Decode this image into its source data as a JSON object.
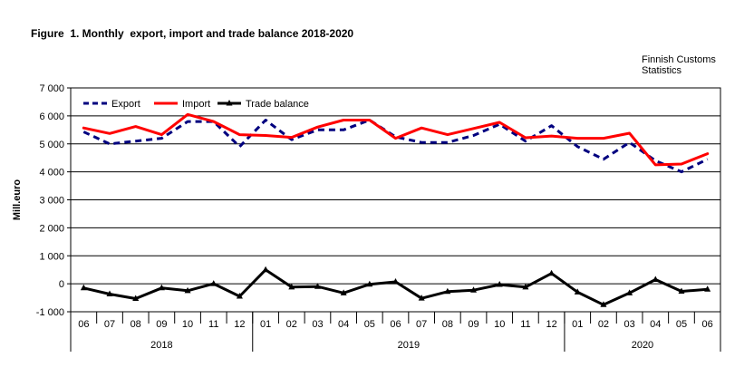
{
  "title": "Figure  1. Monthly  export, import and trade balance 2018-2020",
  "source": [
    "Finnish Customs",
    "Statistics"
  ],
  "chart_data": {
    "type": "line",
    "title": "Figure  1. Monthly  export, import and trade balance 2018-2020",
    "ylabel": "Mill.euro",
    "xlabel": "",
    "ylim": [
      -1000,
      7000
    ],
    "yticks": [
      -1000,
      0,
      1000,
      2000,
      3000,
      4000,
      5000,
      6000,
      7000
    ],
    "ytick_labels": [
      "-1 000",
      "0",
      "1 000",
      "2 000",
      "3 000",
      "4 000",
      "5 000",
      "6 000",
      "7 000"
    ],
    "grid": true,
    "legend_position": "top-left",
    "categories": [
      "06",
      "07",
      "08",
      "09",
      "10",
      "11",
      "12",
      "01",
      "02",
      "03",
      "04",
      "05",
      "06",
      "07",
      "08",
      "09",
      "10",
      "11",
      "12",
      "01",
      "02",
      "03",
      "04",
      "05",
      "06"
    ],
    "years": [
      {
        "label": "2018",
        "start": 0,
        "end": 6
      },
      {
        "label": "2019",
        "start": 7,
        "end": 18
      },
      {
        "label": "2020",
        "start": 19,
        "end": 24
      }
    ],
    "series": [
      {
        "name": "Export",
        "color": "#00007f",
        "style": "dashed",
        "values": [
          5430,
          5000,
          5100,
          5200,
          5800,
          5800,
          4900,
          5850,
          5150,
          5500,
          5500,
          5850,
          5250,
          5050,
          5050,
          5300,
          5700,
          5100,
          5650,
          4900,
          4450,
          5050,
          4400,
          4000,
          4450
        ]
      },
      {
        "name": "Import",
        "color": "#ff0000",
        "style": "solid",
        "values": [
          5570,
          5370,
          5620,
          5330,
          6050,
          5800,
          5330,
          5300,
          5230,
          5600,
          5850,
          5850,
          5200,
          5570,
          5330,
          5550,
          5770,
          5220,
          5280,
          5200,
          5200,
          5380,
          4250,
          4280,
          4650
        ]
      },
      {
        "name": "Trade balance",
        "color": "#000000",
        "style": "solid-marker",
        "values": [
          -150,
          -370,
          -530,
          -150,
          -250,
          0,
          -450,
          500,
          -120,
          -100,
          -330,
          -20,
          70,
          -520,
          -280,
          -230,
          -30,
          -120,
          370,
          -300,
          -750,
          -330,
          150,
          -270,
          -200
        ]
      }
    ]
  }
}
